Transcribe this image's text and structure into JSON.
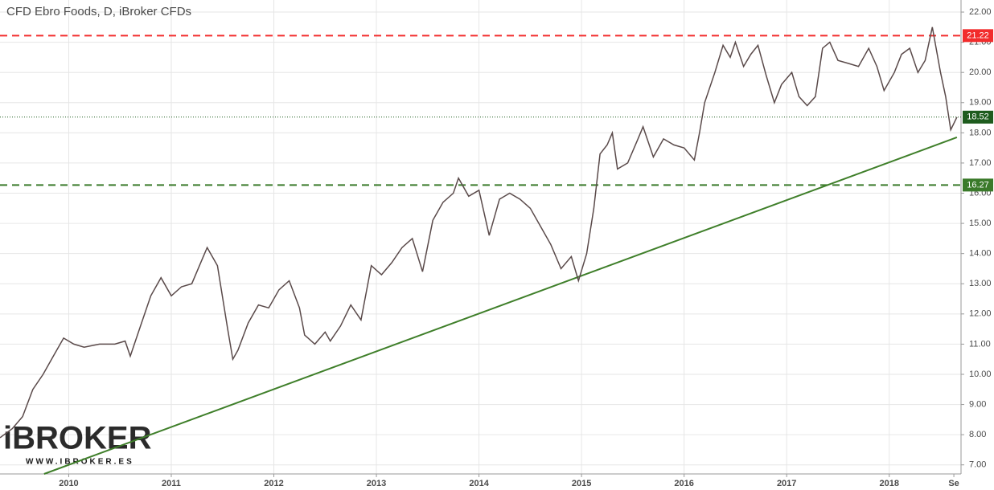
{
  "chart_data": {
    "type": "line",
    "title": "CFD Ebro Foods, D, iBroker CFDs",
    "watermark": {
      "brand": "iBROKER",
      "url": "WWW.IBROKER.ES"
    },
    "xlim": [
      2009.33,
      2018.7
    ],
    "ylim": [
      6.7,
      22.4
    ],
    "grid": true,
    "xticks": [
      2010,
      2011,
      2012,
      2013,
      2014,
      2015,
      2016,
      2017,
      2018,
      {
        "value": 2018.63,
        "label": "Se"
      }
    ],
    "yticks": [
      {
        "value": 7,
        "label": "7.00"
      },
      {
        "value": 8,
        "label": "8.00"
      },
      {
        "value": 9,
        "label": "9.00"
      },
      {
        "value": 10,
        "label": "10.00"
      },
      {
        "value": 11,
        "label": "11.00"
      },
      {
        "value": 12,
        "label": "12.00"
      },
      {
        "value": 13,
        "label": "13.00"
      },
      {
        "value": 14,
        "label": "14.00"
      },
      {
        "value": 15,
        "label": "15.00"
      },
      {
        "value": 16,
        "label": "16.00"
      },
      {
        "value": 17,
        "label": "17.00"
      },
      {
        "value": 18,
        "label": "18.00"
      },
      {
        "value": 19,
        "label": "19.00"
      },
      {
        "value": 20,
        "label": "20.00"
      },
      {
        "value": 21,
        "label": "21.00"
      },
      {
        "value": 22,
        "label": "22.00"
      }
    ],
    "series": [
      {
        "color": "#5a4a4a",
        "x": [
          2009.33,
          2009.45,
          2009.55,
          2009.65,
          2009.75,
          2009.85,
          2009.95,
          2010.05,
          2010.15,
          2010.3,
          2010.45,
          2010.55,
          2010.6,
          2010.7,
          2010.8,
          2010.9,
          2011.0,
          2011.1,
          2011.2,
          2011.3,
          2011.35,
          2011.45,
          2011.55,
          2011.6,
          2011.65,
          2011.75,
          2011.85,
          2011.95,
          2012.05,
          2012.15,
          2012.25,
          2012.3,
          2012.4,
          2012.5,
          2012.55,
          2012.65,
          2012.75,
          2012.85,
          2012.95,
          2013.05,
          2013.15,
          2013.25,
          2013.35,
          2013.45,
          2013.55,
          2013.65,
          2013.75,
          2013.8,
          2013.9,
          2014.0,
          2014.1,
          2014.2,
          2014.3,
          2014.4,
          2014.5,
          2014.6,
          2014.7,
          2014.8,
          2014.9,
          2014.97,
          2015.05,
          2015.12,
          2015.18,
          2015.25,
          2015.3,
          2015.35,
          2015.45,
          2015.55,
          2015.6,
          2015.7,
          2015.8,
          2015.9,
          2016.0,
          2016.1,
          2016.15,
          2016.2,
          2016.3,
          2016.38,
          2016.45,
          2016.5,
          2016.58,
          2016.65,
          2016.72,
          2016.8,
          2016.88,
          2016.95,
          2017.05,
          2017.12,
          2017.2,
          2017.28,
          2017.35,
          2017.42,
          2017.5,
          2017.6,
          2017.7,
          2017.8,
          2017.88,
          2017.95,
          2018.05,
          2018.12,
          2018.2,
          2018.28,
          2018.35,
          2018.42,
          2018.5,
          2018.55,
          2018.6,
          2018.66
        ],
        "values": [
          7.9,
          8.2,
          8.6,
          9.5,
          10.0,
          10.6,
          11.2,
          11.0,
          10.9,
          11.0,
          11.0,
          11.1,
          10.6,
          11.6,
          12.6,
          13.2,
          12.6,
          12.9,
          13.0,
          13.8,
          14.2,
          13.6,
          11.5,
          10.5,
          10.8,
          11.7,
          12.3,
          12.2,
          12.8,
          13.1,
          12.2,
          11.3,
          11.0,
          11.4,
          11.1,
          11.6,
          12.3,
          11.8,
          13.6,
          13.3,
          13.7,
          14.2,
          14.5,
          13.4,
          15.1,
          15.7,
          16.0,
          16.5,
          15.9,
          16.1,
          14.6,
          15.8,
          16.0,
          15.8,
          15.5,
          14.9,
          14.3,
          13.5,
          13.9,
          13.1,
          14.0,
          15.5,
          17.3,
          17.6,
          18.0,
          16.8,
          17.0,
          17.8,
          18.2,
          17.2,
          17.8,
          17.6,
          17.5,
          17.1,
          18.0,
          19.0,
          20.0,
          20.9,
          20.5,
          21.0,
          20.2,
          20.6,
          20.9,
          19.9,
          19.0,
          19.6,
          20.0,
          19.2,
          18.9,
          19.2,
          20.8,
          21.0,
          20.4,
          20.3,
          20.2,
          20.8,
          20.2,
          19.4,
          20.0,
          20.6,
          20.8,
          20.0,
          20.4,
          21.5,
          20.0,
          19.2,
          18.1,
          18.52
        ]
      }
    ],
    "price_lines": [
      {
        "value": 21.22,
        "color": "#f22c2c",
        "style": "dashed"
      },
      {
        "value": 18.52,
        "color": "#1e5c1e",
        "style": "dotted"
      },
      {
        "value": 16.27,
        "color": "#3a7a2a",
        "style": "dashed"
      }
    ],
    "trendline": {
      "x": [
        2009.76,
        2018.66
      ],
      "values": [
        6.7,
        17.85
      ],
      "color": "#3f7f2a"
    }
  }
}
